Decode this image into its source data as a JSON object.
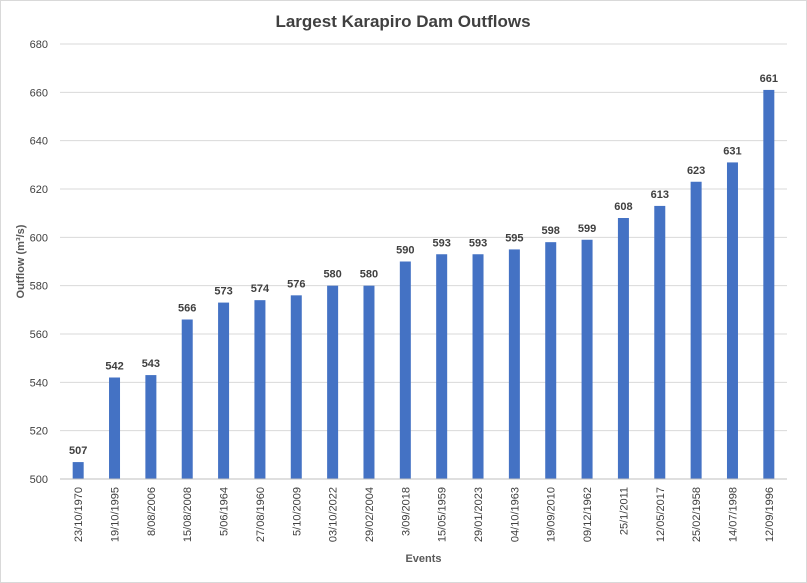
{
  "chart_data": {
    "type": "bar",
    "title": "Largest Karapiro Dam Outflows",
    "xlabel": "Events",
    "ylabel": "Outflow (m³/s)",
    "ylim": [
      500,
      680
    ],
    "ytick_step": 20,
    "grid": true,
    "legend": "none",
    "bar_color": "#4472C4",
    "categories": [
      "23/10/1970",
      "19/10/1995",
      "8/08/2006",
      "15/08/2008",
      "5/06/1964",
      "27/08/1960",
      "5/10/2009",
      "03/10/2022",
      "29/02/2004",
      "3/09/2018",
      "15/05/1959",
      "29/01/2023",
      "04/10/1963",
      "19/09/2010",
      "09/12/1962",
      "25/1/2011",
      "12/05/2017",
      "25/02/1958",
      "14/07/1998",
      "12/09/1996"
    ],
    "values": [
      507,
      542,
      543,
      566,
      573,
      574,
      576,
      580,
      580,
      590,
      593,
      593,
      595,
      598,
      599,
      608,
      613,
      623,
      631,
      661
    ]
  }
}
